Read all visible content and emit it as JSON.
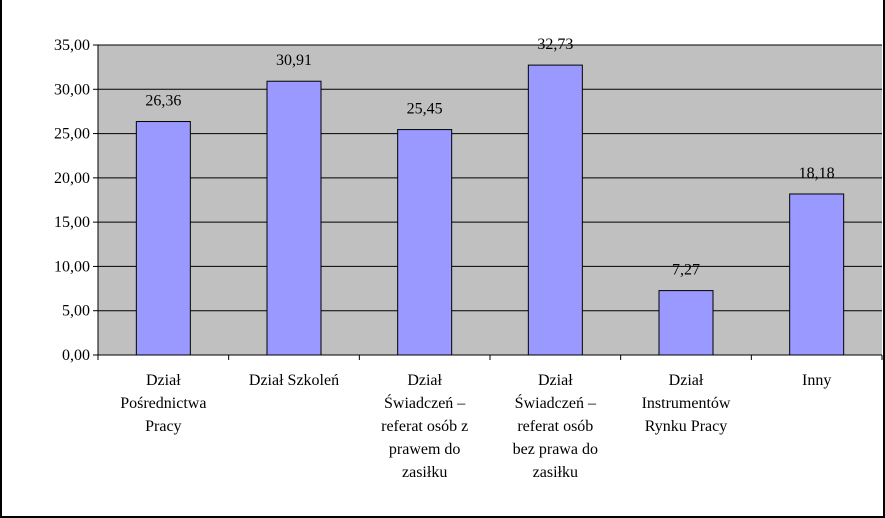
{
  "chart_data": {
    "type": "bar",
    "categories": [
      [
        "Dział",
        "Pośrednictwa",
        "Pracy"
      ],
      [
        "Dział Szkoleń"
      ],
      [
        "Dział",
        "Świadczeń –",
        "referat osób z",
        "prawem do",
        "zasiłku"
      ],
      [
        "Dział",
        "Świadczeń –",
        "referat osób",
        "bez prawa do",
        "zasiłku"
      ],
      [
        "Dział",
        "Instrumentów",
        "Rynku Pracy"
      ],
      [
        "Inny"
      ]
    ],
    "values": [
      26.36,
      30.91,
      25.45,
      32.73,
      7.27,
      18.18
    ],
    "value_labels": [
      "26,36",
      "30,91",
      "25,45",
      "32,73",
      "7,27",
      "18,18"
    ],
    "ylim": [
      0,
      35
    ],
    "yticks": [
      0,
      5,
      10,
      15,
      20,
      25,
      30,
      35
    ],
    "ytick_labels": [
      "0,00",
      "5,00",
      "10,00",
      "15,00",
      "20,00",
      "25,00",
      "30,00",
      "35,00"
    ],
    "grid": true,
    "title": "",
    "xlabel": "",
    "ylabel": "",
    "colors": {
      "bar": "#9999ff",
      "plot_background": "#c0c0c0",
      "border": "#000000"
    }
  }
}
